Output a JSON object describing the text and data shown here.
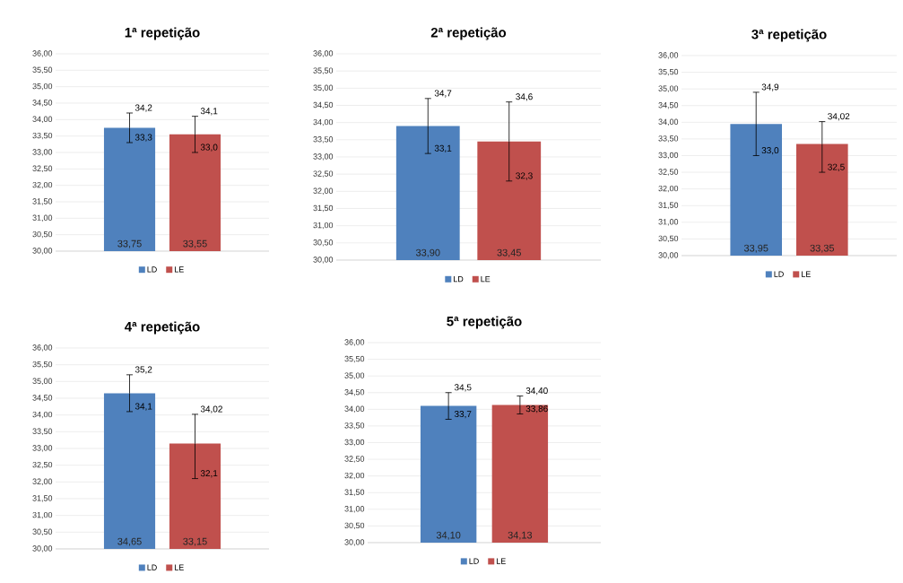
{
  "chart_data": [
    {
      "type": "bar",
      "title": "1ª repetição",
      "categories": [
        null
      ],
      "legend": "bottom",
      "grid": "y",
      "tick_labels": "y",
      "ylim": [
        30,
        36
      ],
      "yticks": [
        {
          "value": 30,
          "label": "30,00"
        },
        {
          "value": 30.5,
          "label": "30,50"
        },
        {
          "value": 31,
          "label": "31,00"
        },
        {
          "value": 31.5,
          "label": "31,50"
        },
        {
          "value": 32,
          "label": "32,00"
        },
        {
          "value": 32.5,
          "label": "32,50"
        },
        {
          "value": 33,
          "label": "33,00"
        },
        {
          "value": 33.5,
          "label": "33,50"
        },
        {
          "value": 34,
          "label": "34,00"
        },
        {
          "value": 34.5,
          "label": "34,50"
        },
        {
          "value": 35,
          "label": "35,00"
        },
        {
          "value": 35.5,
          "label": "35,50"
        },
        {
          "value": 36,
          "label": "36,00"
        }
      ],
      "series": [
        {
          "name": "LD",
          "color": "#4f81bd",
          "values": [
            33.75
          ],
          "value_labels": [
            "33,75"
          ],
          "errors": [
            [
              33.3,
              34.2
            ]
          ]
        },
        {
          "name": "LE",
          "color": "#c0504d",
          "values": [
            33.55
          ],
          "value_labels": [
            "33,55"
          ],
          "errors": [
            [
              33.0,
              34.1
            ]
          ]
        }
      ],
      "annotations": [
        "34,2",
        "33,3",
        "34,1",
        "33,0"
      ]
    },
    {
      "type": "bar",
      "title": "2ª repetição",
      "categories": [
        null
      ],
      "legend": "bottom",
      "grid": "y",
      "tick_labels": "y",
      "ylim": [
        30,
        36
      ],
      "yticks": [
        {
          "value": 30,
          "label": "30,00"
        },
        {
          "value": 30.5,
          "label": "30,50"
        },
        {
          "value": 31,
          "label": "31,00"
        },
        {
          "value": 31.5,
          "label": "31,50"
        },
        {
          "value": 32,
          "label": "32,00"
        },
        {
          "value": 32.5,
          "label": "32,50"
        },
        {
          "value": 33,
          "label": "33,00"
        },
        {
          "value": 33.5,
          "label": "33,50"
        },
        {
          "value": 34,
          "label": "34,00"
        },
        {
          "value": 34.5,
          "label": "34,50"
        },
        {
          "value": 35,
          "label": "35,00"
        },
        {
          "value": 35.5,
          "label": "35,50"
        },
        {
          "value": 36,
          "label": "36,00"
        }
      ],
      "series": [
        {
          "name": "LD",
          "color": "#4f81bd",
          "values": [
            33.9
          ],
          "value_labels": [
            "33,90"
          ],
          "errors": [
            [
              33.1,
              34.7
            ]
          ]
        },
        {
          "name": "LE",
          "color": "#c0504d",
          "values": [
            33.45
          ],
          "value_labels": [
            "33,45"
          ],
          "errors": [
            [
              32.3,
              34.6
            ]
          ]
        }
      ],
      "annotations": [
        "34,7",
        "33,1",
        "34,6",
        "32,3"
      ]
    },
    {
      "type": "bar",
      "title": "3ª repetição",
      "categories": [
        null
      ],
      "legend": "bottom",
      "grid": "y",
      "tick_labels": "y",
      "ylim": [
        30,
        36
      ],
      "yticks": [
        {
          "value": 30,
          "label": "30,00"
        },
        {
          "value": 30.5,
          "label": "30,50"
        },
        {
          "value": 31,
          "label": "31,00"
        },
        {
          "value": 31.5,
          "label": "31,50"
        },
        {
          "value": 32,
          "label": "32,00"
        },
        {
          "value": 32.5,
          "label": "32,50"
        },
        {
          "value": 33,
          "label": "33,00"
        },
        {
          "value": 33.5,
          "label": "33,50"
        },
        {
          "value": 34,
          "label": "34,00"
        },
        {
          "value": 34.5,
          "label": "34,50"
        },
        {
          "value": 35,
          "label": "35,00"
        },
        {
          "value": 35.5,
          "label": "35,50"
        },
        {
          "value": 36,
          "label": "36,00"
        }
      ],
      "series": [
        {
          "name": "LD",
          "color": "#4f81bd",
          "values": [
            33.95
          ],
          "value_labels": [
            "33,95"
          ],
          "errors": [
            [
              33.0,
              34.9
            ]
          ]
        },
        {
          "name": "LE",
          "color": "#c0504d",
          "values": [
            33.35
          ],
          "value_labels": [
            "33,35"
          ],
          "errors": [
            [
              32.5,
              34.02
            ]
          ]
        }
      ],
      "annotations": [
        "34,9",
        "33,0",
        "34,02",
        "32,5"
      ]
    },
    {
      "type": "bar",
      "title": "4ª repetição",
      "categories": [
        null
      ],
      "legend": "bottom",
      "grid": "y",
      "tick_labels": "y",
      "ylim": [
        30,
        36
      ],
      "yticks": [
        {
          "value": 30,
          "label": "30,00"
        },
        {
          "value": 30.5,
          "label": "30,50"
        },
        {
          "value": 31,
          "label": "31,00"
        },
        {
          "value": 31.5,
          "label": "31,50"
        },
        {
          "value": 32,
          "label": "32,00"
        },
        {
          "value": 32.5,
          "label": "32,50"
        },
        {
          "value": 33,
          "label": "33,00"
        },
        {
          "value": 33.5,
          "label": "33,50"
        },
        {
          "value": 34,
          "label": "34,00"
        },
        {
          "value": 34.5,
          "label": "34,50"
        },
        {
          "value": 35,
          "label": "35,00"
        },
        {
          "value": 35.5,
          "label": "35,50"
        },
        {
          "value": 36,
          "label": "36,00"
        }
      ],
      "series": [
        {
          "name": "LD",
          "color": "#4f81bd",
          "values": [
            34.65
          ],
          "value_labels": [
            "34,65"
          ],
          "errors": [
            [
              34.1,
              35.2
            ]
          ]
        },
        {
          "name": "LE",
          "color": "#c0504d",
          "values": [
            33.15
          ],
          "value_labels": [
            "33,15"
          ],
          "errors": [
            [
              32.1,
              34.02
            ]
          ]
        }
      ],
      "annotations": [
        "35,2",
        "34,1",
        "34,02",
        "32,1"
      ]
    },
    {
      "type": "bar",
      "title": "5ª repetição",
      "categories": [
        null
      ],
      "legend": "bottom",
      "grid": "y",
      "tick_labels": "y",
      "ylim": [
        30,
        36
      ],
      "yticks": [
        {
          "value": 30,
          "label": "30,00"
        },
        {
          "value": 30.5,
          "label": "30,50"
        },
        {
          "value": 31,
          "label": "31,00"
        },
        {
          "value": 31.5,
          "label": "31,50"
        },
        {
          "value": 32,
          "label": "32,00"
        },
        {
          "value": 32.5,
          "label": "32,50"
        },
        {
          "value": 33,
          "label": "33,00"
        },
        {
          "value": 33.5,
          "label": "33,50"
        },
        {
          "value": 34,
          "label": "34,00"
        },
        {
          "value": 34.5,
          "label": "34,50"
        },
        {
          "value": 35,
          "label": "35,00"
        },
        {
          "value": 35.5,
          "label": "35,50"
        },
        {
          "value": 36,
          "label": "36,00"
        }
      ],
      "series": [
        {
          "name": "LD",
          "color": "#4f81bd",
          "values": [
            34.1
          ],
          "value_labels": [
            "34,10"
          ],
          "errors": [
            [
              33.7,
              34.5
            ]
          ]
        },
        {
          "name": "LE",
          "color": "#c0504d",
          "values": [
            34.13
          ],
          "value_labels": [
            "34,13"
          ],
          "errors": [
            [
              33.86,
              34.4
            ]
          ]
        }
      ],
      "annotations": [
        "34,5",
        "33,7",
        "34,40",
        "33,86"
      ]
    }
  ]
}
